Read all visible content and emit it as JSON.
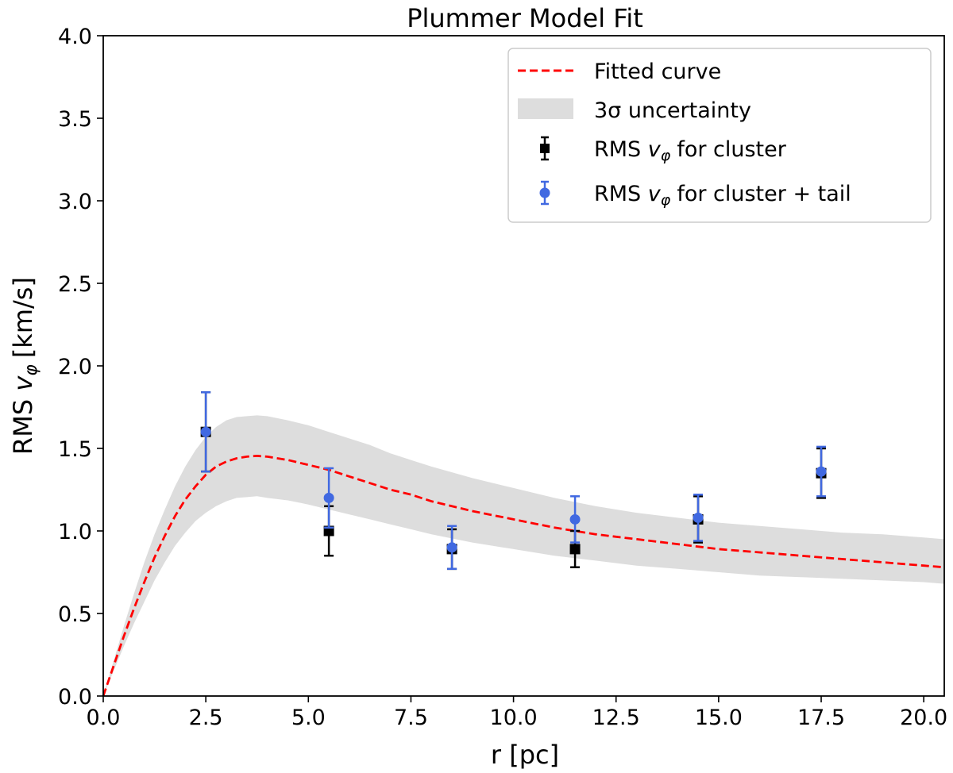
{
  "chart_data": {
    "type": "line",
    "title": "Plummer Model Fit",
    "xlabel": "r [pc]",
    "ylabel": "RMS",
    "ylabel_var": "v",
    "ylabel_sub": "φ",
    "ylabel_unit": "[km/s]",
    "xlim": [
      0,
      20.5
    ],
    "ylim": [
      0,
      4.0
    ],
    "xticks": [
      0.0,
      2.5,
      5.0,
      7.5,
      10.0,
      12.5,
      15.0,
      17.5,
      20.0
    ],
    "xtick_labels": [
      "0.0",
      "2.5",
      "5.0",
      "7.5",
      "10.0",
      "12.5",
      "15.0",
      "17.5",
      "20.0"
    ],
    "yticks": [
      0.0,
      0.5,
      1.0,
      1.5,
      2.0,
      2.5,
      3.0,
      3.5,
      4.0
    ],
    "ytick_labels": [
      "0.0",
      "0.5",
      "1.0",
      "1.5",
      "2.0",
      "2.5",
      "3.0",
      "3.5",
      "4.0"
    ],
    "grid": false,
    "legend_position": "top-right",
    "fit_curve": {
      "name": "Fitted curve",
      "color": "#ff0000",
      "style": "dashed",
      "x": [
        0.0,
        0.25,
        0.5,
        0.75,
        1.0,
        1.25,
        1.5,
        1.75,
        2.0,
        2.25,
        2.5,
        2.75,
        3.0,
        3.25,
        3.5,
        3.75,
        4.0,
        4.5,
        5.0,
        5.5,
        6.0,
        6.5,
        7.0,
        7.5,
        8.0,
        9.0,
        10.0,
        11.0,
        12.0,
        13.0,
        14.0,
        15.0,
        16.0,
        17.0,
        18.0,
        19.0,
        20.0,
        20.5
      ],
      "y": [
        0.0,
        0.18,
        0.36,
        0.53,
        0.69,
        0.84,
        0.97,
        1.09,
        1.19,
        1.27,
        1.34,
        1.39,
        1.42,
        1.44,
        1.45,
        1.455,
        1.45,
        1.43,
        1.4,
        1.37,
        1.33,
        1.29,
        1.25,
        1.22,
        1.18,
        1.12,
        1.07,
        1.02,
        0.98,
        0.95,
        0.92,
        0.89,
        0.87,
        0.85,
        0.83,
        0.81,
        0.79,
        0.78
      ]
    },
    "uncertainty_band": {
      "name": "3σ uncertainty",
      "color": "#dddddd",
      "x": [
        0.0,
        0.25,
        0.5,
        0.75,
        1.0,
        1.25,
        1.5,
        1.75,
        2.0,
        2.25,
        2.5,
        2.75,
        3.0,
        3.25,
        3.5,
        3.75,
        4.0,
        4.5,
        5.0,
        5.5,
        6.0,
        6.5,
        7.0,
        7.5,
        8.0,
        9.0,
        10.0,
        11.0,
        12.0,
        13.0,
        14.0,
        15.0,
        16.0,
        17.0,
        18.0,
        19.0,
        20.0,
        20.5
      ],
      "lower": [
        0.0,
        0.15,
        0.3,
        0.44,
        0.57,
        0.7,
        0.81,
        0.91,
        0.99,
        1.06,
        1.11,
        1.15,
        1.18,
        1.2,
        1.205,
        1.21,
        1.2,
        1.185,
        1.16,
        1.13,
        1.1,
        1.07,
        1.04,
        1.01,
        0.98,
        0.93,
        0.89,
        0.85,
        0.82,
        0.79,
        0.77,
        0.75,
        0.73,
        0.72,
        0.71,
        0.7,
        0.69,
        0.68
      ],
      "upper": [
        0.0,
        0.21,
        0.42,
        0.62,
        0.81,
        0.98,
        1.13,
        1.27,
        1.39,
        1.49,
        1.57,
        1.63,
        1.67,
        1.69,
        1.695,
        1.7,
        1.695,
        1.67,
        1.64,
        1.6,
        1.56,
        1.52,
        1.47,
        1.43,
        1.39,
        1.32,
        1.26,
        1.2,
        1.15,
        1.11,
        1.08,
        1.05,
        1.03,
        1.01,
        0.99,
        0.98,
        0.96,
        0.95
      ]
    },
    "series": [
      {
        "name": "RMS",
        "legend_rest": "for cluster",
        "color": "#000000",
        "marker": "square",
        "x": [
          2.5,
          5.5,
          8.5,
          11.5,
          14.5,
          17.5
        ],
        "y": [
          1.6,
          1.0,
          0.89,
          0.89,
          1.07,
          1.35
        ],
        "err": [
          0.24,
          0.15,
          0.12,
          0.11,
          0.14,
          0.15
        ]
      },
      {
        "name": "RMS",
        "legend_rest": "for cluster + tail",
        "color": "#4169e1",
        "marker": "circle",
        "x": [
          2.5,
          5.5,
          8.5,
          11.5,
          14.5,
          17.5
        ],
        "y": [
          1.6,
          1.2,
          0.9,
          1.07,
          1.08,
          1.36
        ],
        "err": [
          0.24,
          0.18,
          0.13,
          0.14,
          0.14,
          0.15
        ]
      }
    ],
    "legend_var": "v",
    "legend_sub": "φ"
  }
}
